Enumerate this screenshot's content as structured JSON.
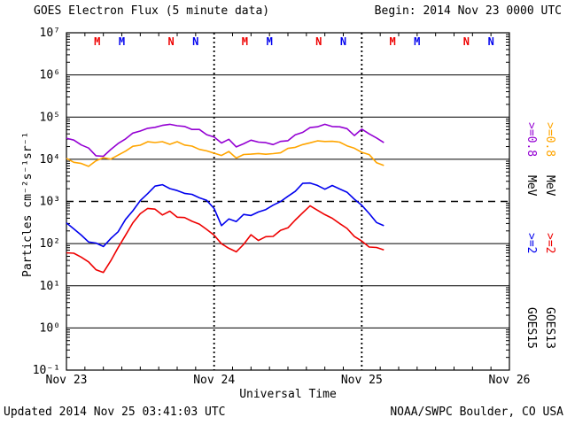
{
  "header": {
    "title": "GOES Electron Flux (5 minute data)",
    "begin_label": "Begin: 2014 Nov 23 0000 UTC"
  },
  "footer": {
    "updated": "Updated 2014 Nov 25 03:41:03 UTC",
    "credit": "NOAA/SWPC Boulder, CO USA"
  },
  "axes": {
    "ylabel": "Particles cm⁻²s⁻¹sr⁻¹",
    "xlabel": "Universal Time"
  },
  "legend": {
    "goes15": {
      "name": "GOES15",
      "e08_label": ">=0.8",
      "e2_label": ">=2",
      "unit": "MeV",
      "color_e08": "#9400d3",
      "color_e2": "#0000ee"
    },
    "goes13": {
      "name": "GOES13",
      "e08_label": ">=0.8",
      "e2_label": ">=2",
      "unit": "MeV",
      "color_e08": "#ffa500",
      "color_e2": "#ee0000"
    }
  },
  "chart_data": {
    "type": "line",
    "title": "GOES Electron Flux (5 minute data)",
    "xlabel": "Universal Time",
    "ylabel": "Particles cm-2 s-1 sr-1",
    "y_scale": "log",
    "grid": true,
    "x_range_days": [
      0,
      3
    ],
    "x_tick_labels": [
      "Nov 23",
      "Nov 24",
      "Nov 25",
      "Nov 26"
    ],
    "y_exponent_range": [
      -1,
      7
    ],
    "y_tick_labels": [
      "10⁷",
      "10⁶",
      "10⁵",
      "10⁴",
      "10³",
      "10²",
      "10¹",
      "10⁰",
      "10⁻¹"
    ],
    "threshold_value": 1000,
    "day_line_positions_days": [
      1,
      2
    ],
    "markers": [
      {
        "t_hours": 5,
        "label": "M",
        "color": "#ee0000"
      },
      {
        "t_hours": 9,
        "label": "M",
        "color": "#0000ee"
      },
      {
        "t_hours": 17,
        "label": "N",
        "color": "#ee0000"
      },
      {
        "t_hours": 21,
        "label": "N",
        "color": "#0000ee"
      },
      {
        "t_hours": 29,
        "label": "M",
        "color": "#ee0000"
      },
      {
        "t_hours": 33,
        "label": "M",
        "color": "#0000ee"
      },
      {
        "t_hours": 41,
        "label": "N",
        "color": "#ee0000"
      },
      {
        "t_hours": 45,
        "label": "N",
        "color": "#0000ee"
      },
      {
        "t_hours": 53,
        "label": "M",
        "color": "#ee0000"
      },
      {
        "t_hours": 57,
        "label": "M",
        "color": "#0000ee"
      },
      {
        "t_hours": 65,
        "label": "N",
        "color": "#ee0000"
      },
      {
        "t_hours": 69,
        "label": "N",
        "color": "#0000ee"
      }
    ],
    "series_time": {
      "t0_days": 0,
      "dt_days": 0.05
    },
    "series": [
      {
        "name": "GOES15 >=0.8 MeV",
        "color": "#9400d3",
        "values": [
          31600,
          28200,
          22400,
          17800,
          12600,
          11200,
          17800,
          22400,
          31600,
          39800,
          47900,
          52500,
          57500,
          63100,
          66100,
          63100,
          57500,
          52500,
          47900,
          39800,
          31600,
          25100,
          28200,
          20000,
          22400,
          28200,
          25100,
          24000,
          22400,
          25100,
          28200,
          35500,
          44700,
          52500,
          60300,
          63100,
          60300,
          56200,
          52500,
          35500,
          50100,
          39800,
          30200,
          25100
        ]
      },
      {
        "name": "GOES13 >=0.8 MeV",
        "color": "#ffa500",
        "values": [
          10000,
          8910,
          7590,
          7080,
          8910,
          11200,
          10000,
          12600,
          15800,
          20000,
          22400,
          25100,
          26300,
          25100,
          24000,
          25100,
          22900,
          20000,
          17800,
          15800,
          14100,
          12600,
          15100,
          11200,
          12600,
          14100,
          13200,
          14100,
          13200,
          15100,
          17800,
          20000,
          22400,
          25100,
          28200,
          26300,
          28200,
          25100,
          22400,
          17800,
          15800,
          12600,
          8910,
          7080
        ]
      },
      {
        "name": "GOES15 >=2 MeV",
        "color": "#0000ee",
        "values": [
          316,
          224,
          158,
          112,
          100,
          89,
          126,
          200,
          355,
          631,
          1000,
          1580,
          2240,
          2510,
          2000,
          1780,
          1580,
          1410,
          1260,
          1000,
          708,
          251,
          398,
          316,
          501,
          447,
          562,
          631,
          794,
          1000,
          1260,
          1780,
          2510,
          2820,
          2240,
          2000,
          2240,
          2000,
          1580,
          1120,
          794,
          501,
          316,
          251
        ]
      },
      {
        "name": "GOES13 >=2 MeV",
        "color": "#ee0000",
        "values": [
          63,
          56,
          50,
          35,
          25,
          20,
          40,
          79,
          158,
          316,
          501,
          708,
          631,
          501,
          562,
          447,
          398,
          355,
          282,
          224,
          158,
          100,
          79,
          63,
          100,
          158,
          126,
          141,
          158,
          200,
          251,
          355,
          562,
          794,
          631,
          501,
          398,
          316,
          224,
          158,
          112,
          89,
          79,
          76
        ]
      }
    ]
  }
}
